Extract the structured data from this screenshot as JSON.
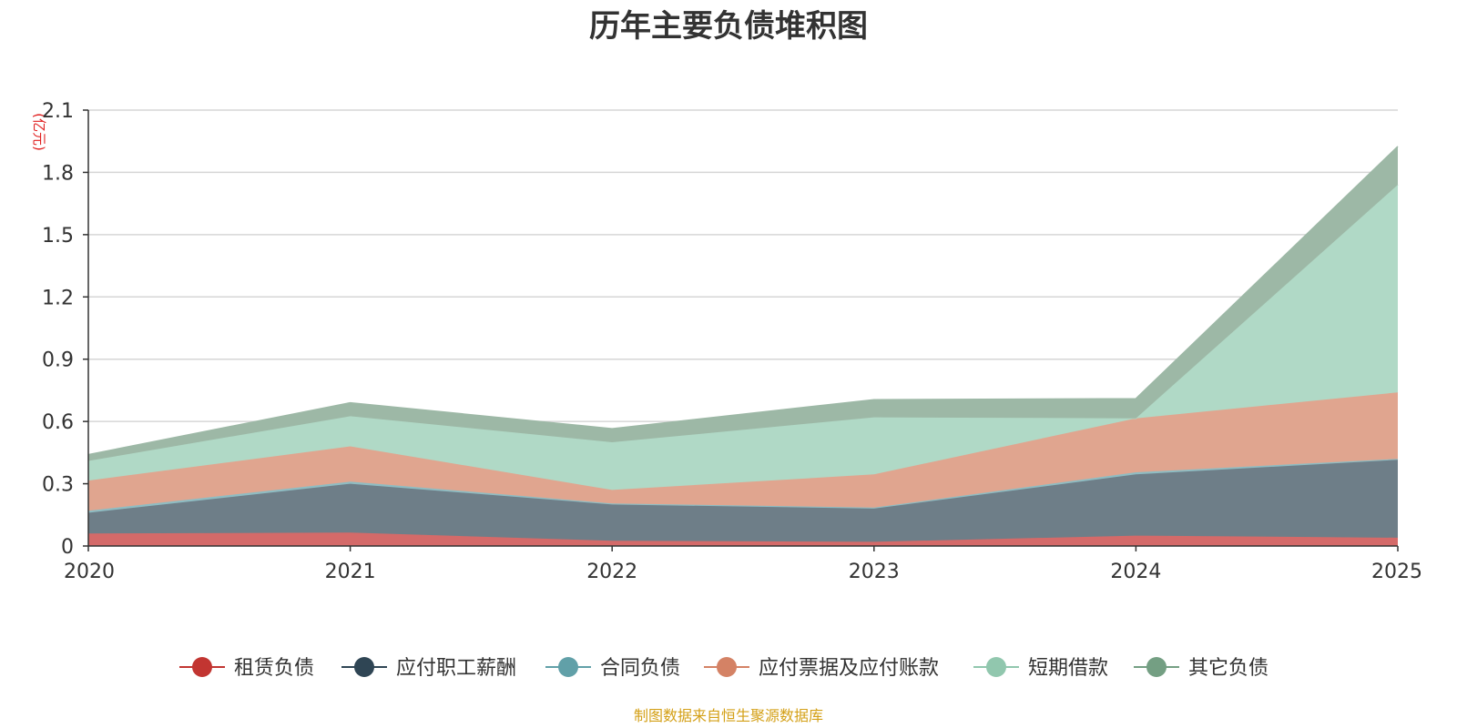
{
  "chart_data": {
    "type": "area",
    "stacked": true,
    "title": "历年主要负债堆积图",
    "unit_label": "(亿元)",
    "x": [
      "2020",
      "2021",
      "2022",
      "2023",
      "2024",
      "2025"
    ],
    "ylim": [
      0,
      2.1
    ],
    "yticks": [
      "0",
      "0.3",
      "0.6",
      "0.9",
      "1.2",
      "1.5",
      "1.8",
      "2.1"
    ],
    "ytick_values": [
      0,
      0.3,
      0.6,
      0.9,
      1.2,
      1.5,
      1.8,
      2.1
    ],
    "grid": true,
    "legend_position": "bottom",
    "series": [
      {
        "name": "租赁负债",
        "values": [
          0.06,
          0.065,
          0.025,
          0.02,
          0.05,
          0.04
        ],
        "color": "#c23531",
        "fill": "#d46a69"
      },
      {
        "name": "应付职工薪酬",
        "values": [
          0.1,
          0.235,
          0.175,
          0.16,
          0.295,
          0.375
        ],
        "color": "#2f4554",
        "fill": "#6e7e88"
      },
      {
        "name": "合同负债",
        "values": [
          0.01,
          0.01,
          0.005,
          0.005,
          0.01,
          0.005
        ],
        "color": "#61a0a8",
        "fill": "#8fbcc2"
      },
      {
        "name": "应付票据及应付账款",
        "values": [
          0.145,
          0.17,
          0.065,
          0.16,
          0.26,
          0.32
        ],
        "color": "#d48265",
        "fill": "#e0a58f"
      },
      {
        "name": "短期借款",
        "values": [
          0.095,
          0.145,
          0.23,
          0.275,
          0.0,
          1.0
        ],
        "color": "#91c7ae",
        "fill": "#b0d9c6"
      },
      {
        "name": "其它负债",
        "values": [
          0.03,
          0.065,
          0.065,
          0.085,
          0.095,
          0.185
        ],
        "color": "#749f83",
        "fill": "#9db8a6"
      }
    ],
    "source_note": "制图数据来自恒生聚源数据库"
  }
}
